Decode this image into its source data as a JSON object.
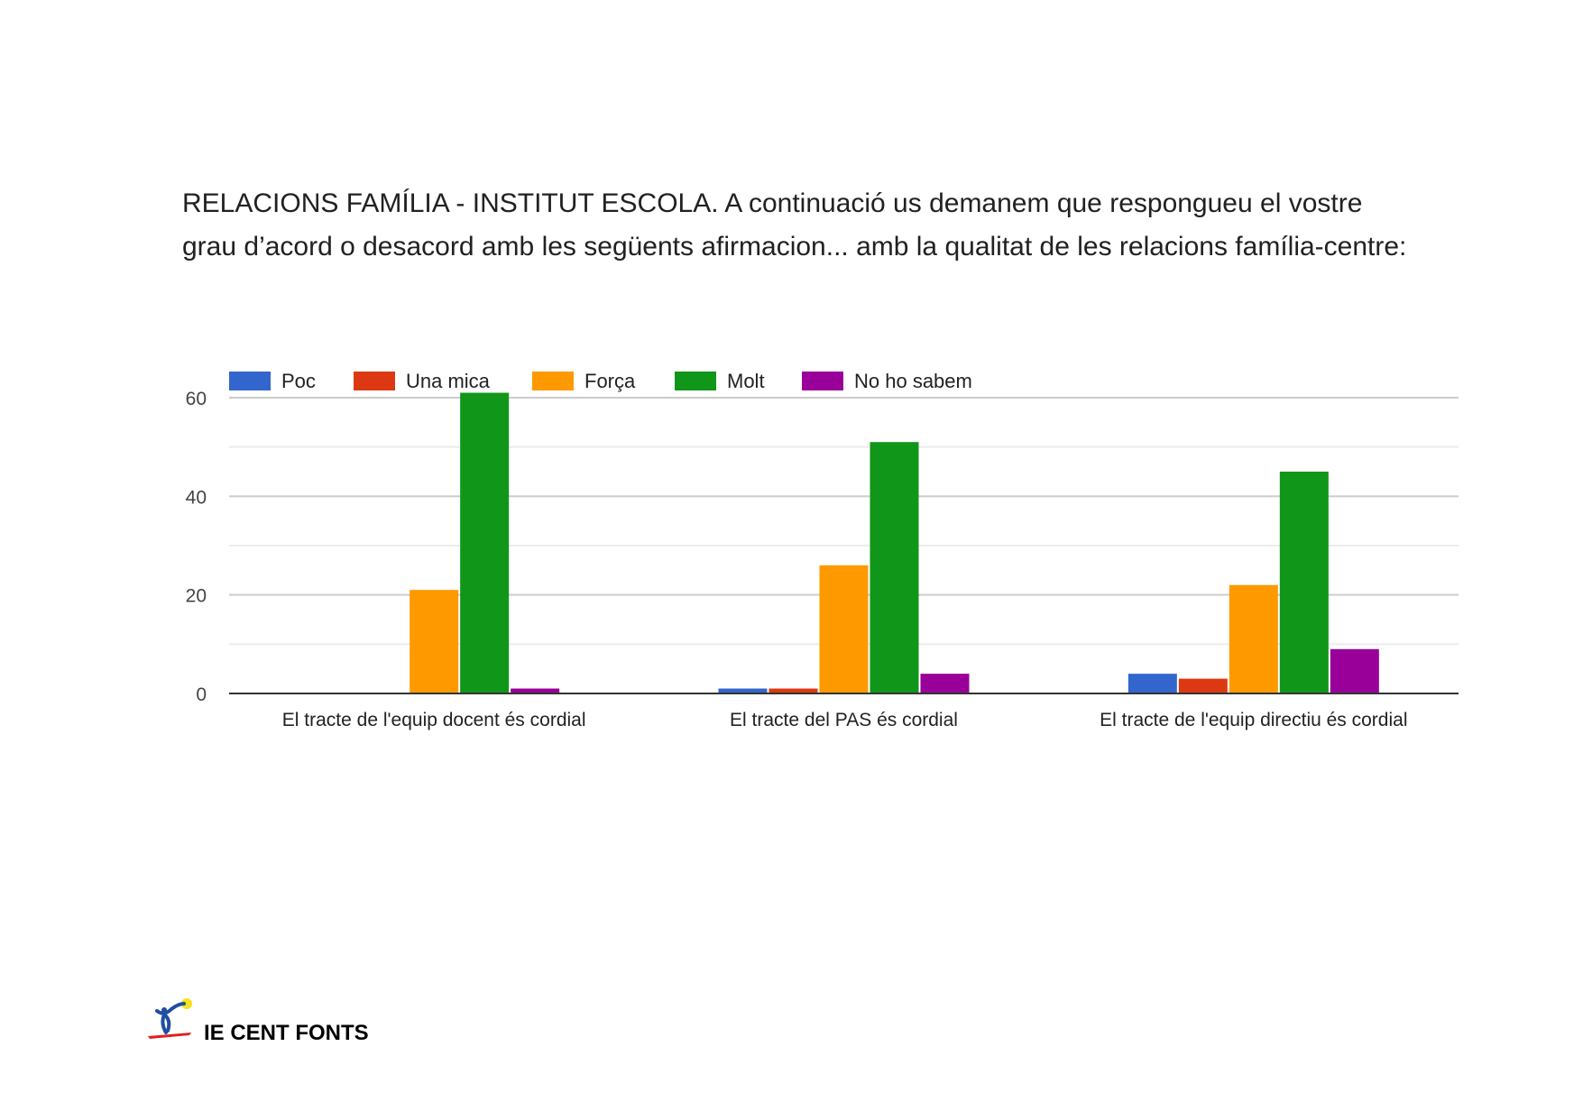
{
  "title_lines": [
    "RELACIONS FAMÍLIA - INSTITUT ESCOLA. A continuació us demanem que respongueu el vostre",
    "grau d’acord o desacord amb les següents afirmacion... amb la qualitat de les relacions família-centre:"
  ],
  "chart_data": {
    "type": "bar",
    "title": "RELACIONS FAMÍLIA - INSTITUT ESCOLA. A continuació us demanem que respongueu el vostre grau d’acord o desacord amb les següents afirmacion... amb la qualitat de les relacions família-centre:",
    "categories": [
      "El tracte de l'equip docent és cordial",
      "El tracte del PAS és cordial",
      "El tracte de l'equip directiu és cordial"
    ],
    "series": [
      {
        "name": "Poc",
        "color": "#3366cc",
        "values": [
          0,
          1,
          4
        ]
      },
      {
        "name": "Una mica",
        "color": "#dc3912",
        "values": [
          0,
          1,
          3
        ]
      },
      {
        "name": "Força",
        "color": "#ff9900",
        "values": [
          21,
          26,
          22
        ]
      },
      {
        "name": "Molt",
        "color": "#109618",
        "values": [
          61,
          51,
          45
        ]
      },
      {
        "name": "No ho sabem",
        "color": "#990099",
        "values": [
          1,
          4,
          9
        ]
      }
    ],
    "yticks": [
      "0",
      "20",
      "40",
      "60"
    ],
    "ylim": [
      0,
      60
    ],
    "xlabel": "",
    "ylabel": "",
    "grid": true,
    "legend_position": "top-left"
  },
  "footer": {
    "logo_text": "IE CENT FONTS"
  }
}
